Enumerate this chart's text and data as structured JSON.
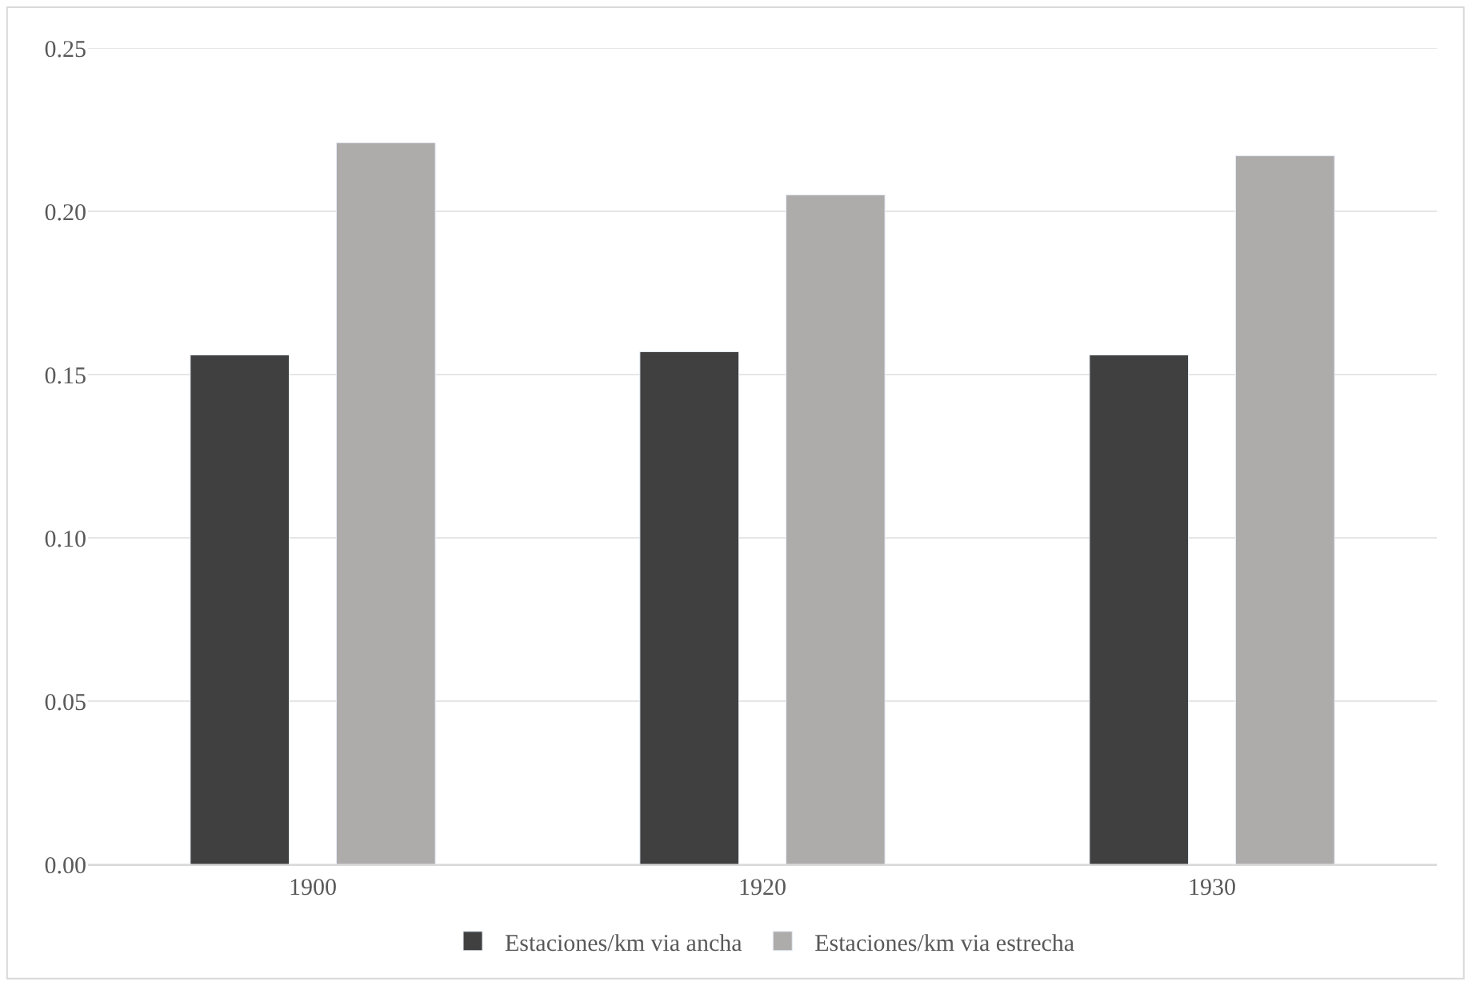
{
  "chart_data": {
    "type": "bar",
    "categories": [
      "1900",
      "1920",
      "1930"
    ],
    "series": [
      {
        "name": "Estaciones/km via ancha",
        "color": "#404040",
        "values": [
          0.156,
          0.157,
          0.156
        ]
      },
      {
        "name": "Estaciones/km via estrecha",
        "color": "#aeabab",
        "values": [
          0.221,
          0.205,
          0.217
        ]
      }
    ],
    "ylim": [
      0,
      0.25
    ],
    "yticks": [
      {
        "value": 0,
        "label": "0.00"
      },
      {
        "value": 0.05,
        "label": "0.05"
      },
      {
        "value": 0.1,
        "label": "0.10"
      },
      {
        "value": 0.15,
        "label": "0.15"
      },
      {
        "value": 0.2,
        "label": "0.20"
      },
      {
        "value": 0.25,
        "label": "0.25"
      }
    ],
    "grid": "y",
    "legend": "bottom"
  }
}
